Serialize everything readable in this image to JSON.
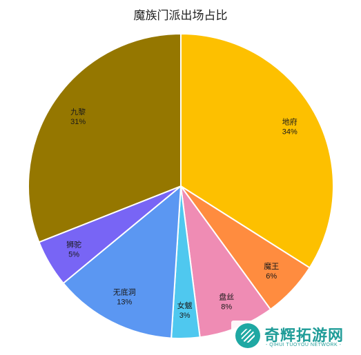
{
  "chart_data": {
    "type": "pie",
    "title": "魔族门派出场占比",
    "slices": [
      {
        "label": "地府",
        "value": 34,
        "display": "34%",
        "color": "#FDC000"
      },
      {
        "label": "魔王",
        "value": 6,
        "display": "6%",
        "color": "#FF8C3F"
      },
      {
        "label": "盘丝",
        "value": 8,
        "display": "8%",
        "color": "#EF8CB4"
      },
      {
        "label": "女魃",
        "value": 3,
        "display": "3%",
        "color": "#4FC8EF"
      },
      {
        "label": "无底洞",
        "value": 13,
        "display": "13%",
        "color": "#5B97F2"
      },
      {
        "label": "狮驼",
        "value": 5,
        "display": "5%",
        "color": "#7865F5"
      },
      {
        "label": "九黎",
        "value": 31,
        "display": "31%",
        "color": "#957700"
      }
    ],
    "start_angle": "12 o'clock",
    "direction": "clockwise",
    "legend": "none"
  },
  "watermark": {
    "name": "奇辉拓游网",
    "subtitle": "- QIHUI TUOYOU NETWORK -"
  }
}
